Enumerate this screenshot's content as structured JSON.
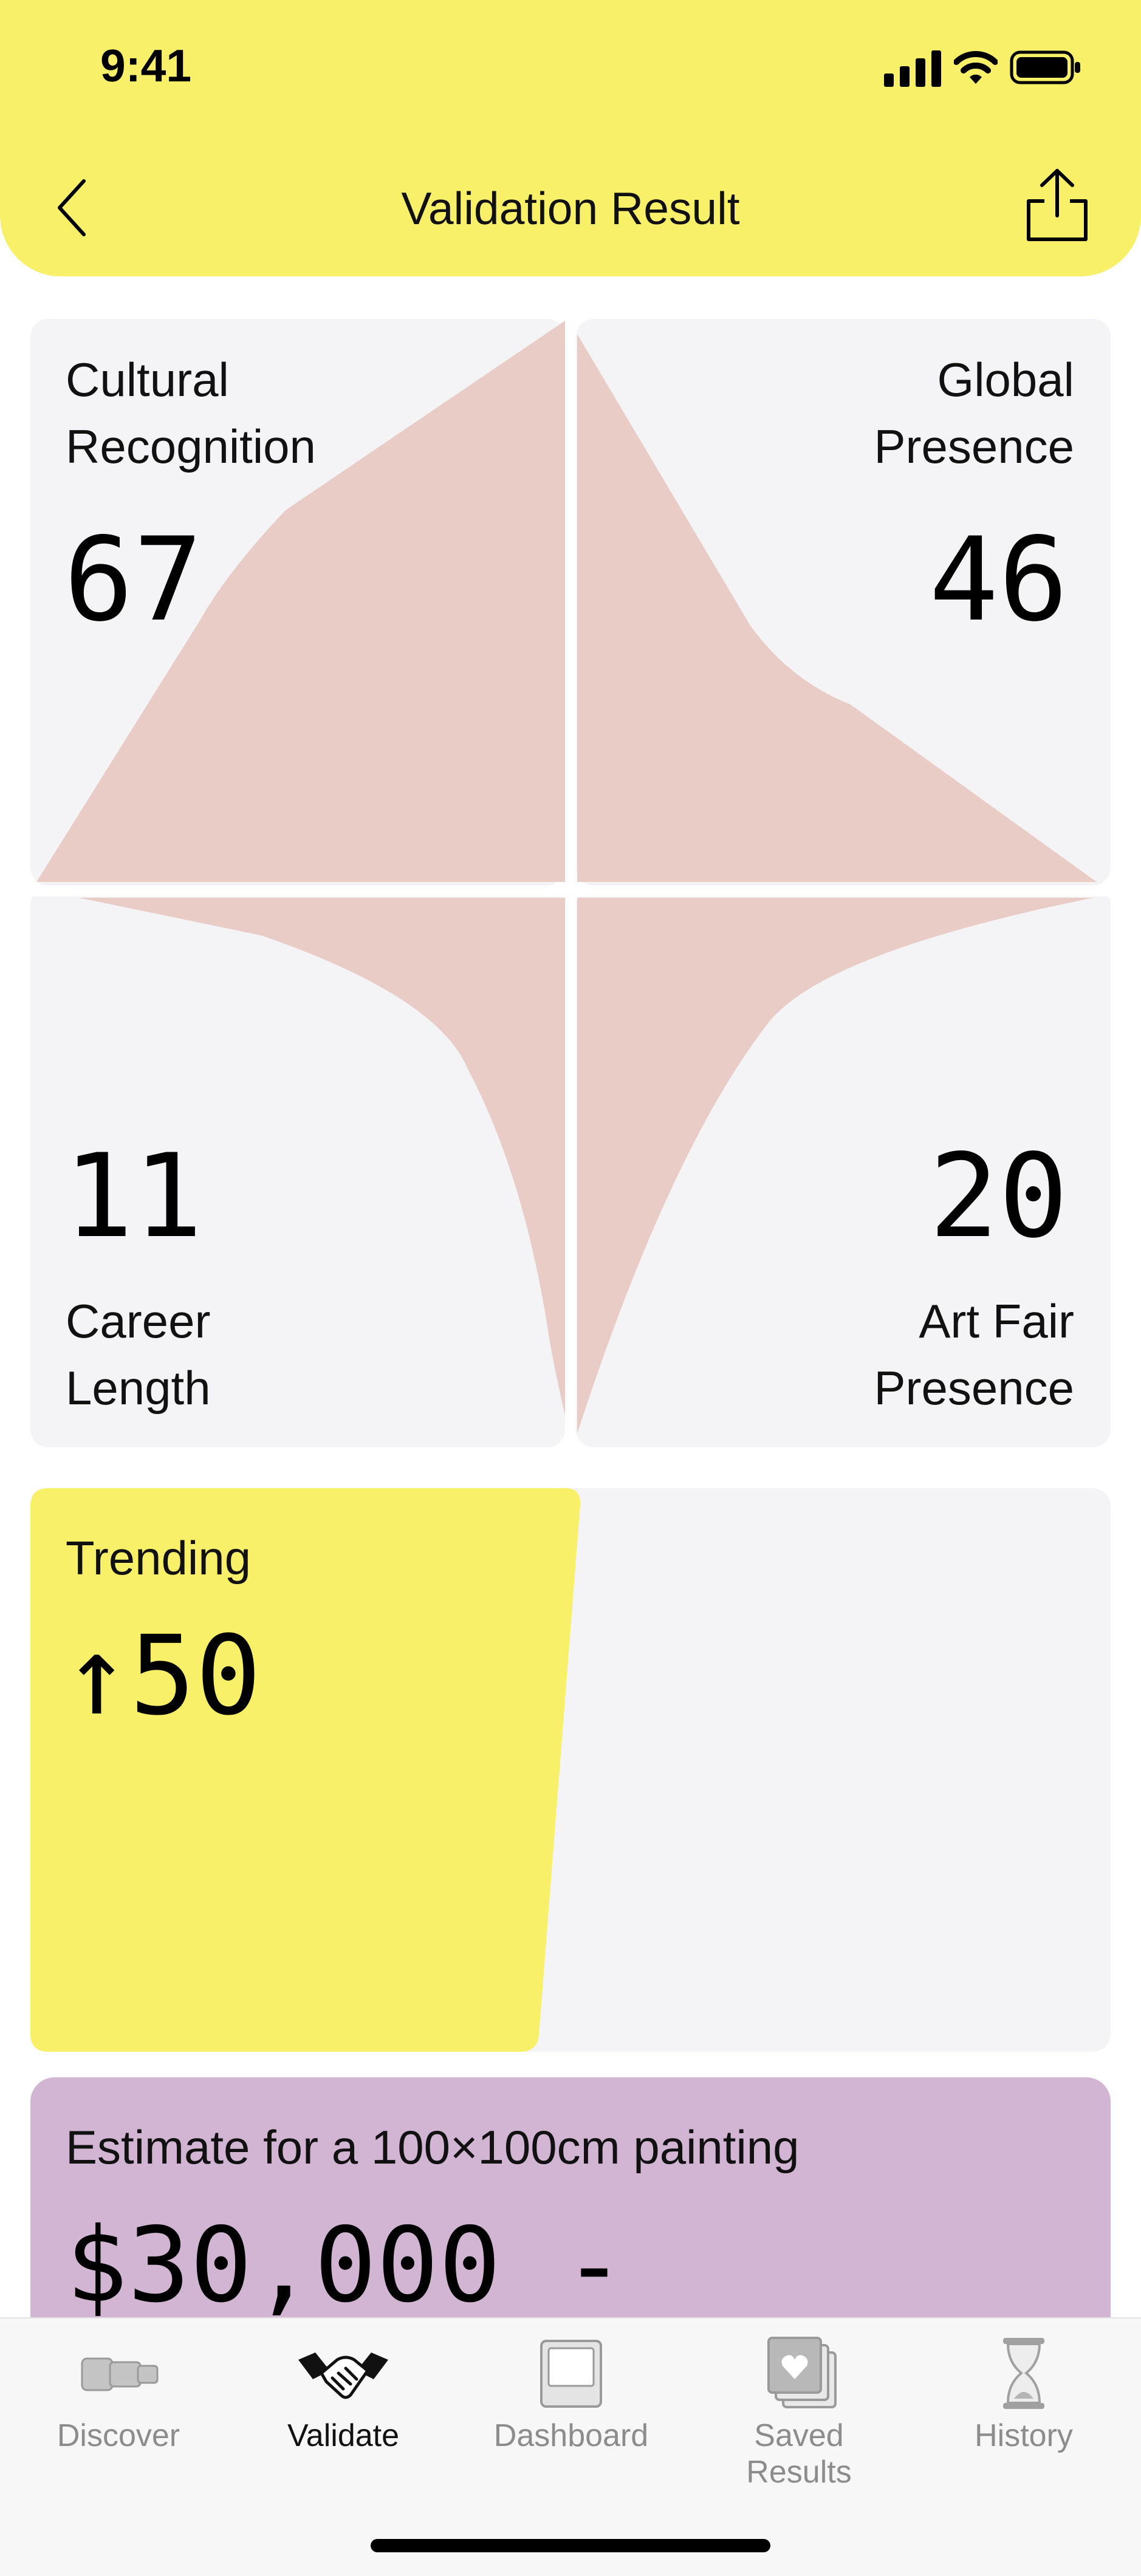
{
  "status_bar": {
    "time": "9:41"
  },
  "header": {
    "title": "Validation Result",
    "back_icon": "chevron-left-icon",
    "share_icon": "share-icon"
  },
  "metrics": {
    "cultural_recognition": {
      "label": "Cultural Recognition",
      "line1": "Cultural",
      "line2": "Recognition",
      "value": "67"
    },
    "global_presence": {
      "label": "Global Presence",
      "line1": "Global",
      "line2": "Presence",
      "value": "46"
    },
    "career_length": {
      "label": "Career Length",
      "line1": "Career",
      "line2": "Length",
      "value": "11"
    },
    "art_fair_presence": {
      "label": "Art Fair Presence",
      "line1": "Art Fair",
      "line2": "Presence",
      "value": "20"
    }
  },
  "trending": {
    "label": "Trending",
    "value": "↑50"
  },
  "estimate": {
    "label": "Estimate for a 100×100cm painting",
    "value": "$30,000 -"
  },
  "tabs": [
    {
      "label": "Discover",
      "icon": "telescope-icon",
      "active": false
    },
    {
      "label": "Validate",
      "icon": "handshake-icon",
      "active": true
    },
    {
      "label": "Dashboard",
      "icon": "dashboard-icon",
      "active": false
    },
    {
      "label": "Saved Results",
      "icon": "saved-results-icon",
      "active": false
    },
    {
      "label": "History",
      "icon": "hourglass-icon",
      "active": false
    }
  ],
  "colors": {
    "header": "#F9F06A",
    "card": "#F4F4F6",
    "shape": "#E9CCC6",
    "trending": "#F9F06A",
    "estimate": "#D1B5D2"
  }
}
